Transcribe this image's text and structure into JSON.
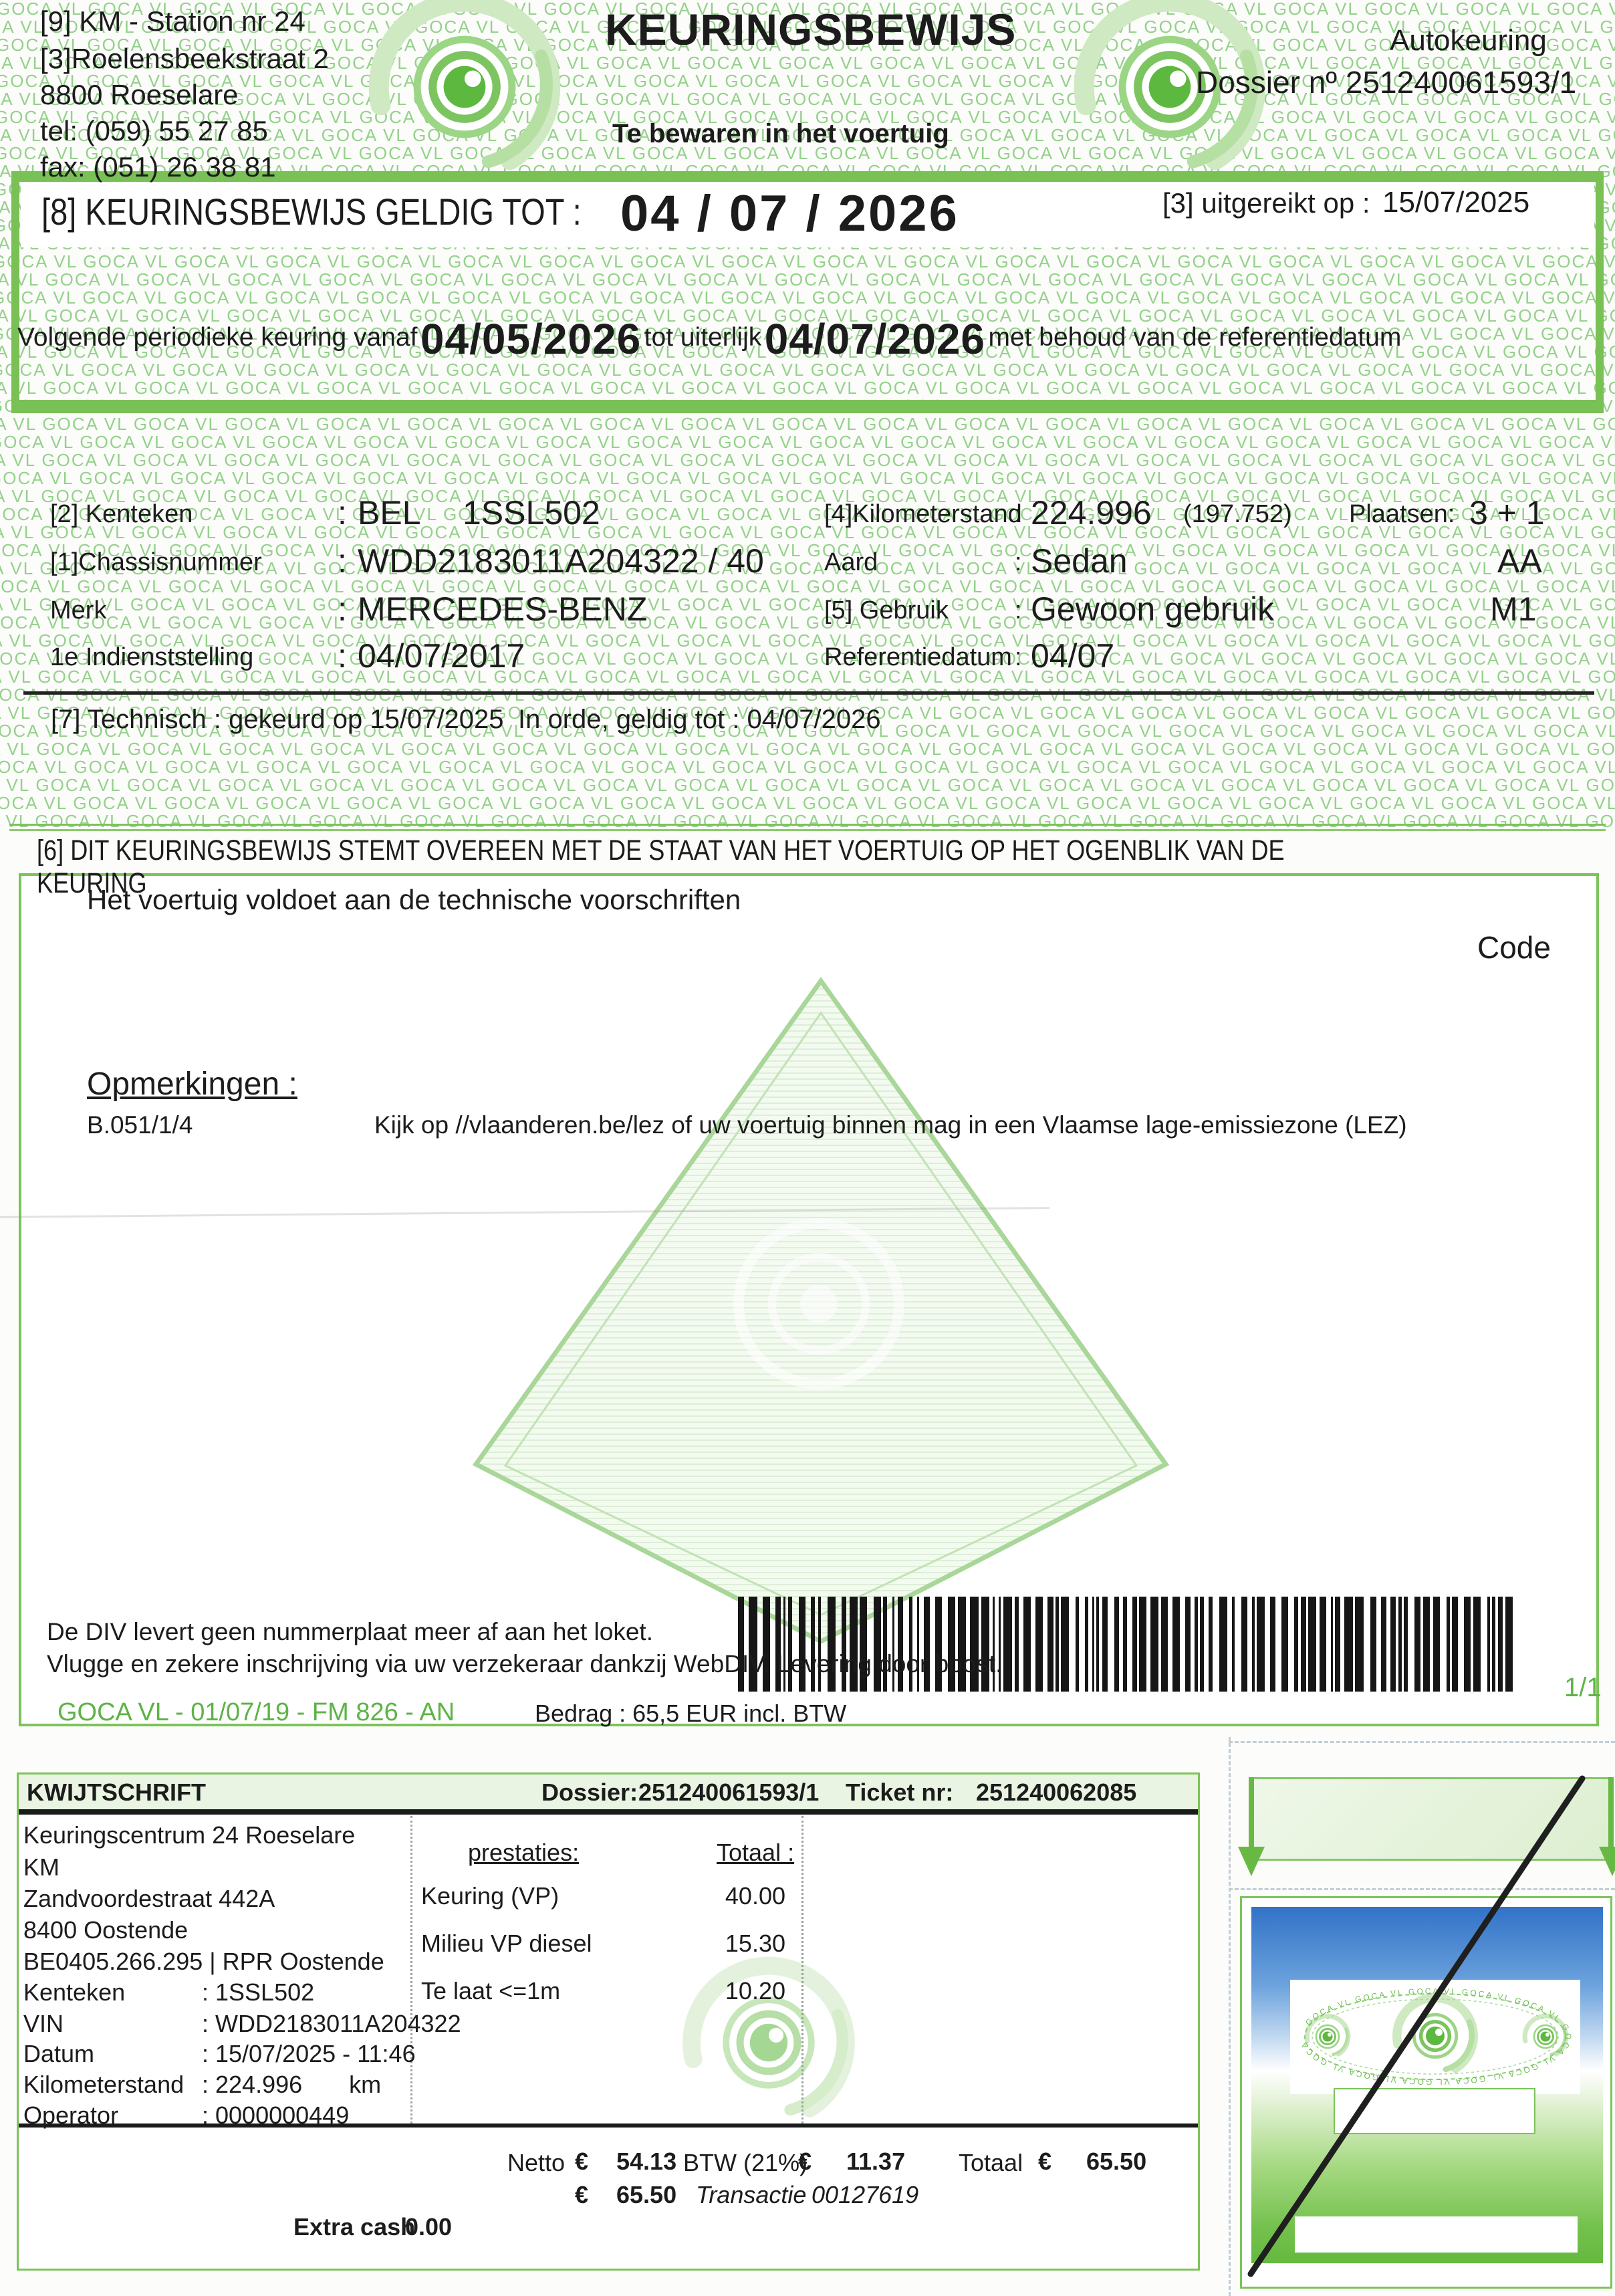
{
  "colors": {
    "accent_green": "#79c055",
    "pattern_green": "#76c46c",
    "band_fill": "#e9f5e2",
    "footer_green": "#5db344",
    "sticker_blue": "#3273c8"
  },
  "certificate": {
    "pattern_text": "GOCA VL",
    "station": {
      "line1": "[9] KM - Station nr 24",
      "line2": "[3]Roelensbeekstraat 2",
      "line3": "8800 Roeselare",
      "line4": "tel:  (059) 55 27 85",
      "line5": "fax:  (051) 26 38 81"
    },
    "title": "KEURINGSBEWIJS",
    "subtitle": "Te bewaren in het voertuig",
    "type_label": "Autokeuring",
    "dossier": "Dossier nº 251240061593/1",
    "issued_label": "[3] uitgereikt op :",
    "issued_date": "15/07/2025",
    "valid_label": "[8] KEURINGSBEWIJS GELDIG TOT :",
    "valid_date": "04 / 07 / 2026",
    "next": {
      "prefix": "Volgende periodieke keuring vanaf",
      "from": "04/05/2026",
      "mid": "tot uiterlijk",
      "to": "04/07/2026",
      "suffix": "met behoud van de referentiedatum"
    },
    "vehicle": {
      "row1_label": "[2] Kenteken",
      "row1_colon": ":",
      "row1_value_a": "BEL",
      "row1_value_b": "1SSL502",
      "row2_label": "[1]Chassisnummer",
      "row2_colon": ":",
      "row2_value": "WDD2183011A204322 / 40",
      "row3_label": "Merk",
      "row3_colon": ":",
      "row3_value": "MERCEDES-BENZ",
      "row4_label": "1e Indienststelling",
      "row4_colon": ":",
      "row4_value": "04/07/2017",
      "km_label": "[4]Kilometerstand",
      "km_colon": ":",
      "km_value": "224.996",
      "km_extra": "(197.752)",
      "plaatsen_label": "Plaatsen:",
      "plaatsen_value": "3 + 1",
      "aard_label": "Aard",
      "aard_colon": ":",
      "aard_value": "Sedan",
      "aard_code": "AA",
      "gebruik_label": "[5] Gebruik",
      "gebruik_colon": ":",
      "gebruik_value": "Gewoon gebruik",
      "gebruik_code": "M1",
      "ref_label": "Referentiedatum",
      "ref_colon": ":",
      "ref_value": "04/07"
    },
    "technical_left": "[7] Technisch : gekeurd op 15/07/2025",
    "technical_right": "In orde, geldig tot :  04/07/2026",
    "statement": "[6] DIT KEURINGSBEWIJS STEMT OVEREEN MET DE STAAT VAN HET VOERTUIG OP HET OGENBLIK VAN DE KEURING",
    "conform": "Het voertuig voldoet aan de technische voorschriften",
    "code_label": "Code",
    "remarks_title": "Opmerkingen :",
    "remarks_code": "B.051/1/4",
    "remarks_text": "Kijk op //vlaanderen.be/lez of uw voertuig binnen mag in een Vlaamse lage-emissiezone (LEZ)",
    "div_note1": "De DIV levert geen nummerplaat meer af aan het loket.",
    "div_note2": "Vlugge en zekere inschrijving via uw verzekeraar dankzij WebDIV. Levering door bpost.",
    "page_num": "1/1",
    "footer_ref": "GOCA VL - 01/07/19 - FM 826 - AN",
    "footer_amount": "Bedrag : 65,5 EUR incl. BTW"
  },
  "receipt": {
    "title": "KWIJTSCHRIFT",
    "dossier_label": "Dossier:",
    "dossier": "251240061593/1",
    "ticket_label": "Ticket nr:",
    "ticket": "251240062085",
    "address": [
      "Keuringscentrum  24   Roeselare",
      "KM",
      "Zandvoordestraat 442A",
      "8400 Oostende",
      "BE0405.266.295 | RPR  Oostende"
    ],
    "details": [
      {
        "label": "Kenteken",
        "value": ": 1SSL502"
      },
      {
        "label": "VIN",
        "value": ": WDD2183011A204322"
      },
      {
        "label": "Datum",
        "value": ": 15/07/2025 - 11:46"
      },
      {
        "label": "Kilometerstand",
        "value": ": 224.996       km"
      },
      {
        "label": "Operator",
        "value": ": 0000000449"
      }
    ],
    "services_header": "prestaties:",
    "totaal_header": "Totaal :",
    "services": [
      {
        "name": "Keuring (VP)",
        "amount": "40.00"
      },
      {
        "name": "Milieu VP diesel",
        "amount": "15.30"
      },
      {
        "name": "Te laat <=1m",
        "amount": "10.20"
      }
    ],
    "totals": {
      "netto_label": "Netto",
      "euro": "€",
      "netto": "54.13",
      "btw_label": "BTW (21%)",
      "btw": "11.37",
      "totaal_label": "Totaal",
      "totaal": "65.50",
      "paid": "65.50",
      "transactie_label": "Transactie",
      "transactie": "00127619",
      "extra_label": "Extra cash",
      "extra": "0.00"
    }
  }
}
